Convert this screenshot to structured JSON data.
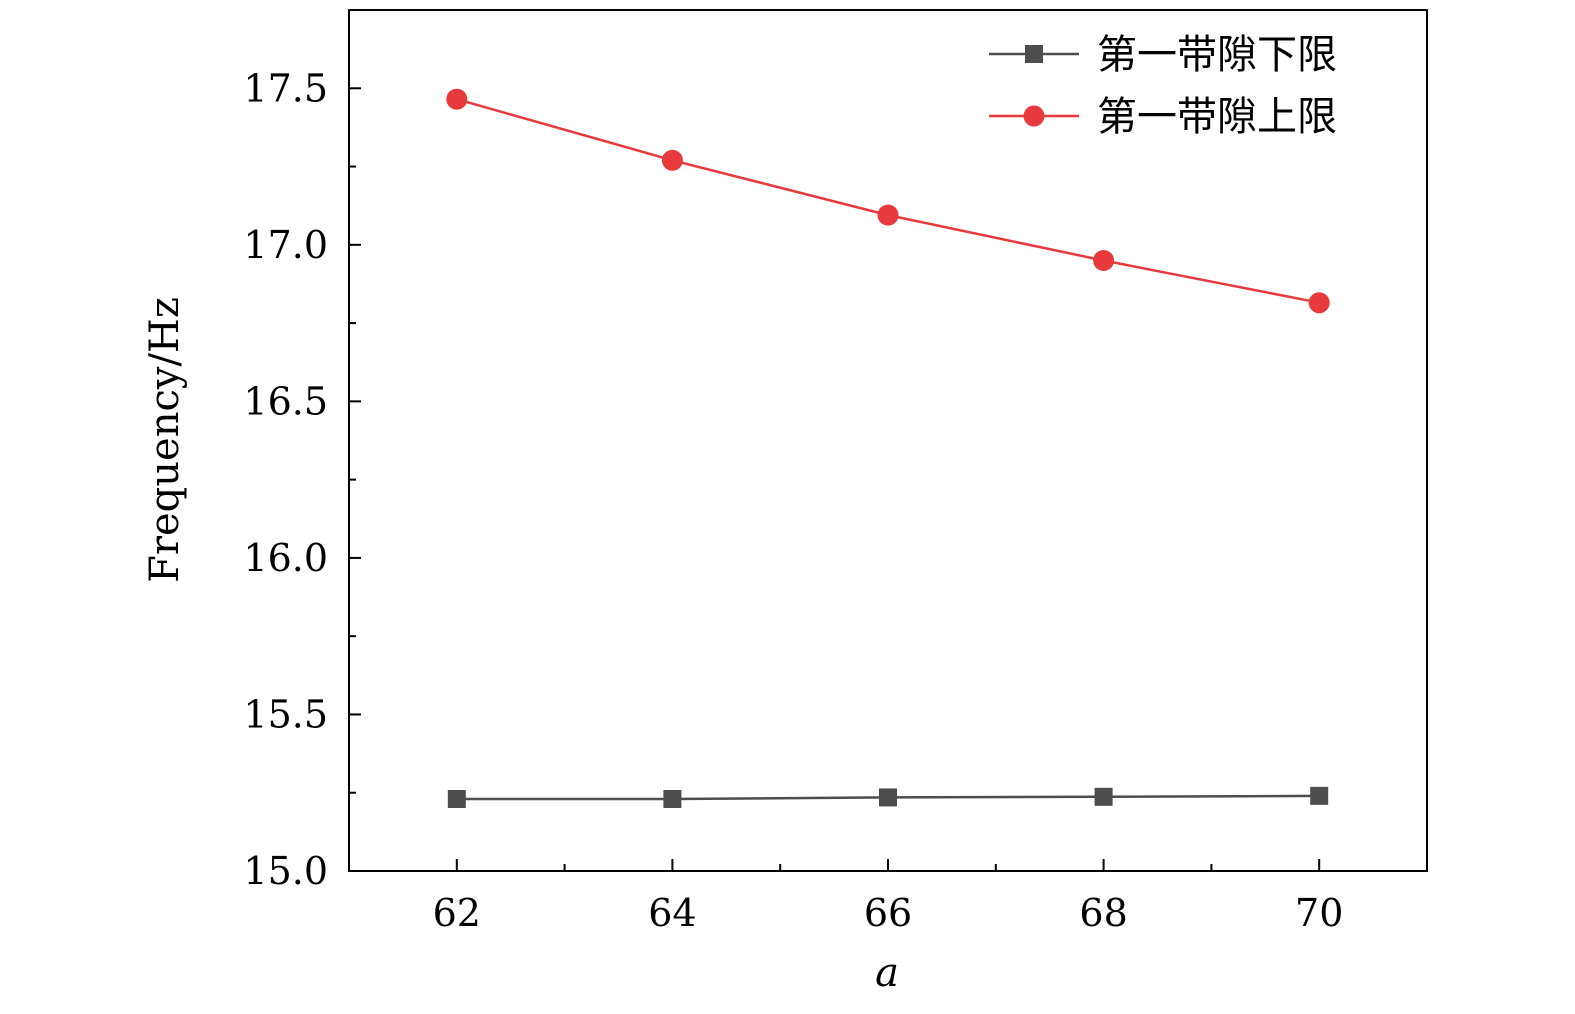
{
  "chart_data": {
    "type": "line",
    "title": "",
    "xlabel": "a",
    "ylabel": "Frequency/Hz",
    "xlim": [
      61,
      71
    ],
    "ylim": [
      15.0,
      17.75
    ],
    "x": [
      62,
      64,
      66,
      68,
      70
    ],
    "x_ticks": [
      62,
      64,
      66,
      68,
      70
    ],
    "x_tick_labels": [
      "62",
      "64",
      "66",
      "68",
      "70"
    ],
    "x_minor_ticks": [
      63,
      65,
      67,
      69
    ],
    "y_ticks": [
      15.0,
      15.5,
      16.0,
      16.5,
      17.0,
      17.5
    ],
    "y_tick_labels": [
      "15.0",
      "15.5",
      "16.0",
      "16.5",
      "17.0",
      "17.5"
    ],
    "y_minor_ticks": [
      15.25,
      15.75,
      16.25,
      16.75,
      17.25
    ],
    "grid": false,
    "legend_position": "top-right",
    "series": [
      {
        "name": "第一带隙下限",
        "marker": "square",
        "color": "#4d4d4d",
        "values": [
          15.23,
          15.23,
          15.235,
          15.237,
          15.24
        ]
      },
      {
        "name": "第一带隙上限",
        "marker": "circle",
        "color": "#e8393d",
        "values": [
          17.465,
          17.27,
          17.095,
          16.95,
          16.815
        ]
      }
    ]
  }
}
